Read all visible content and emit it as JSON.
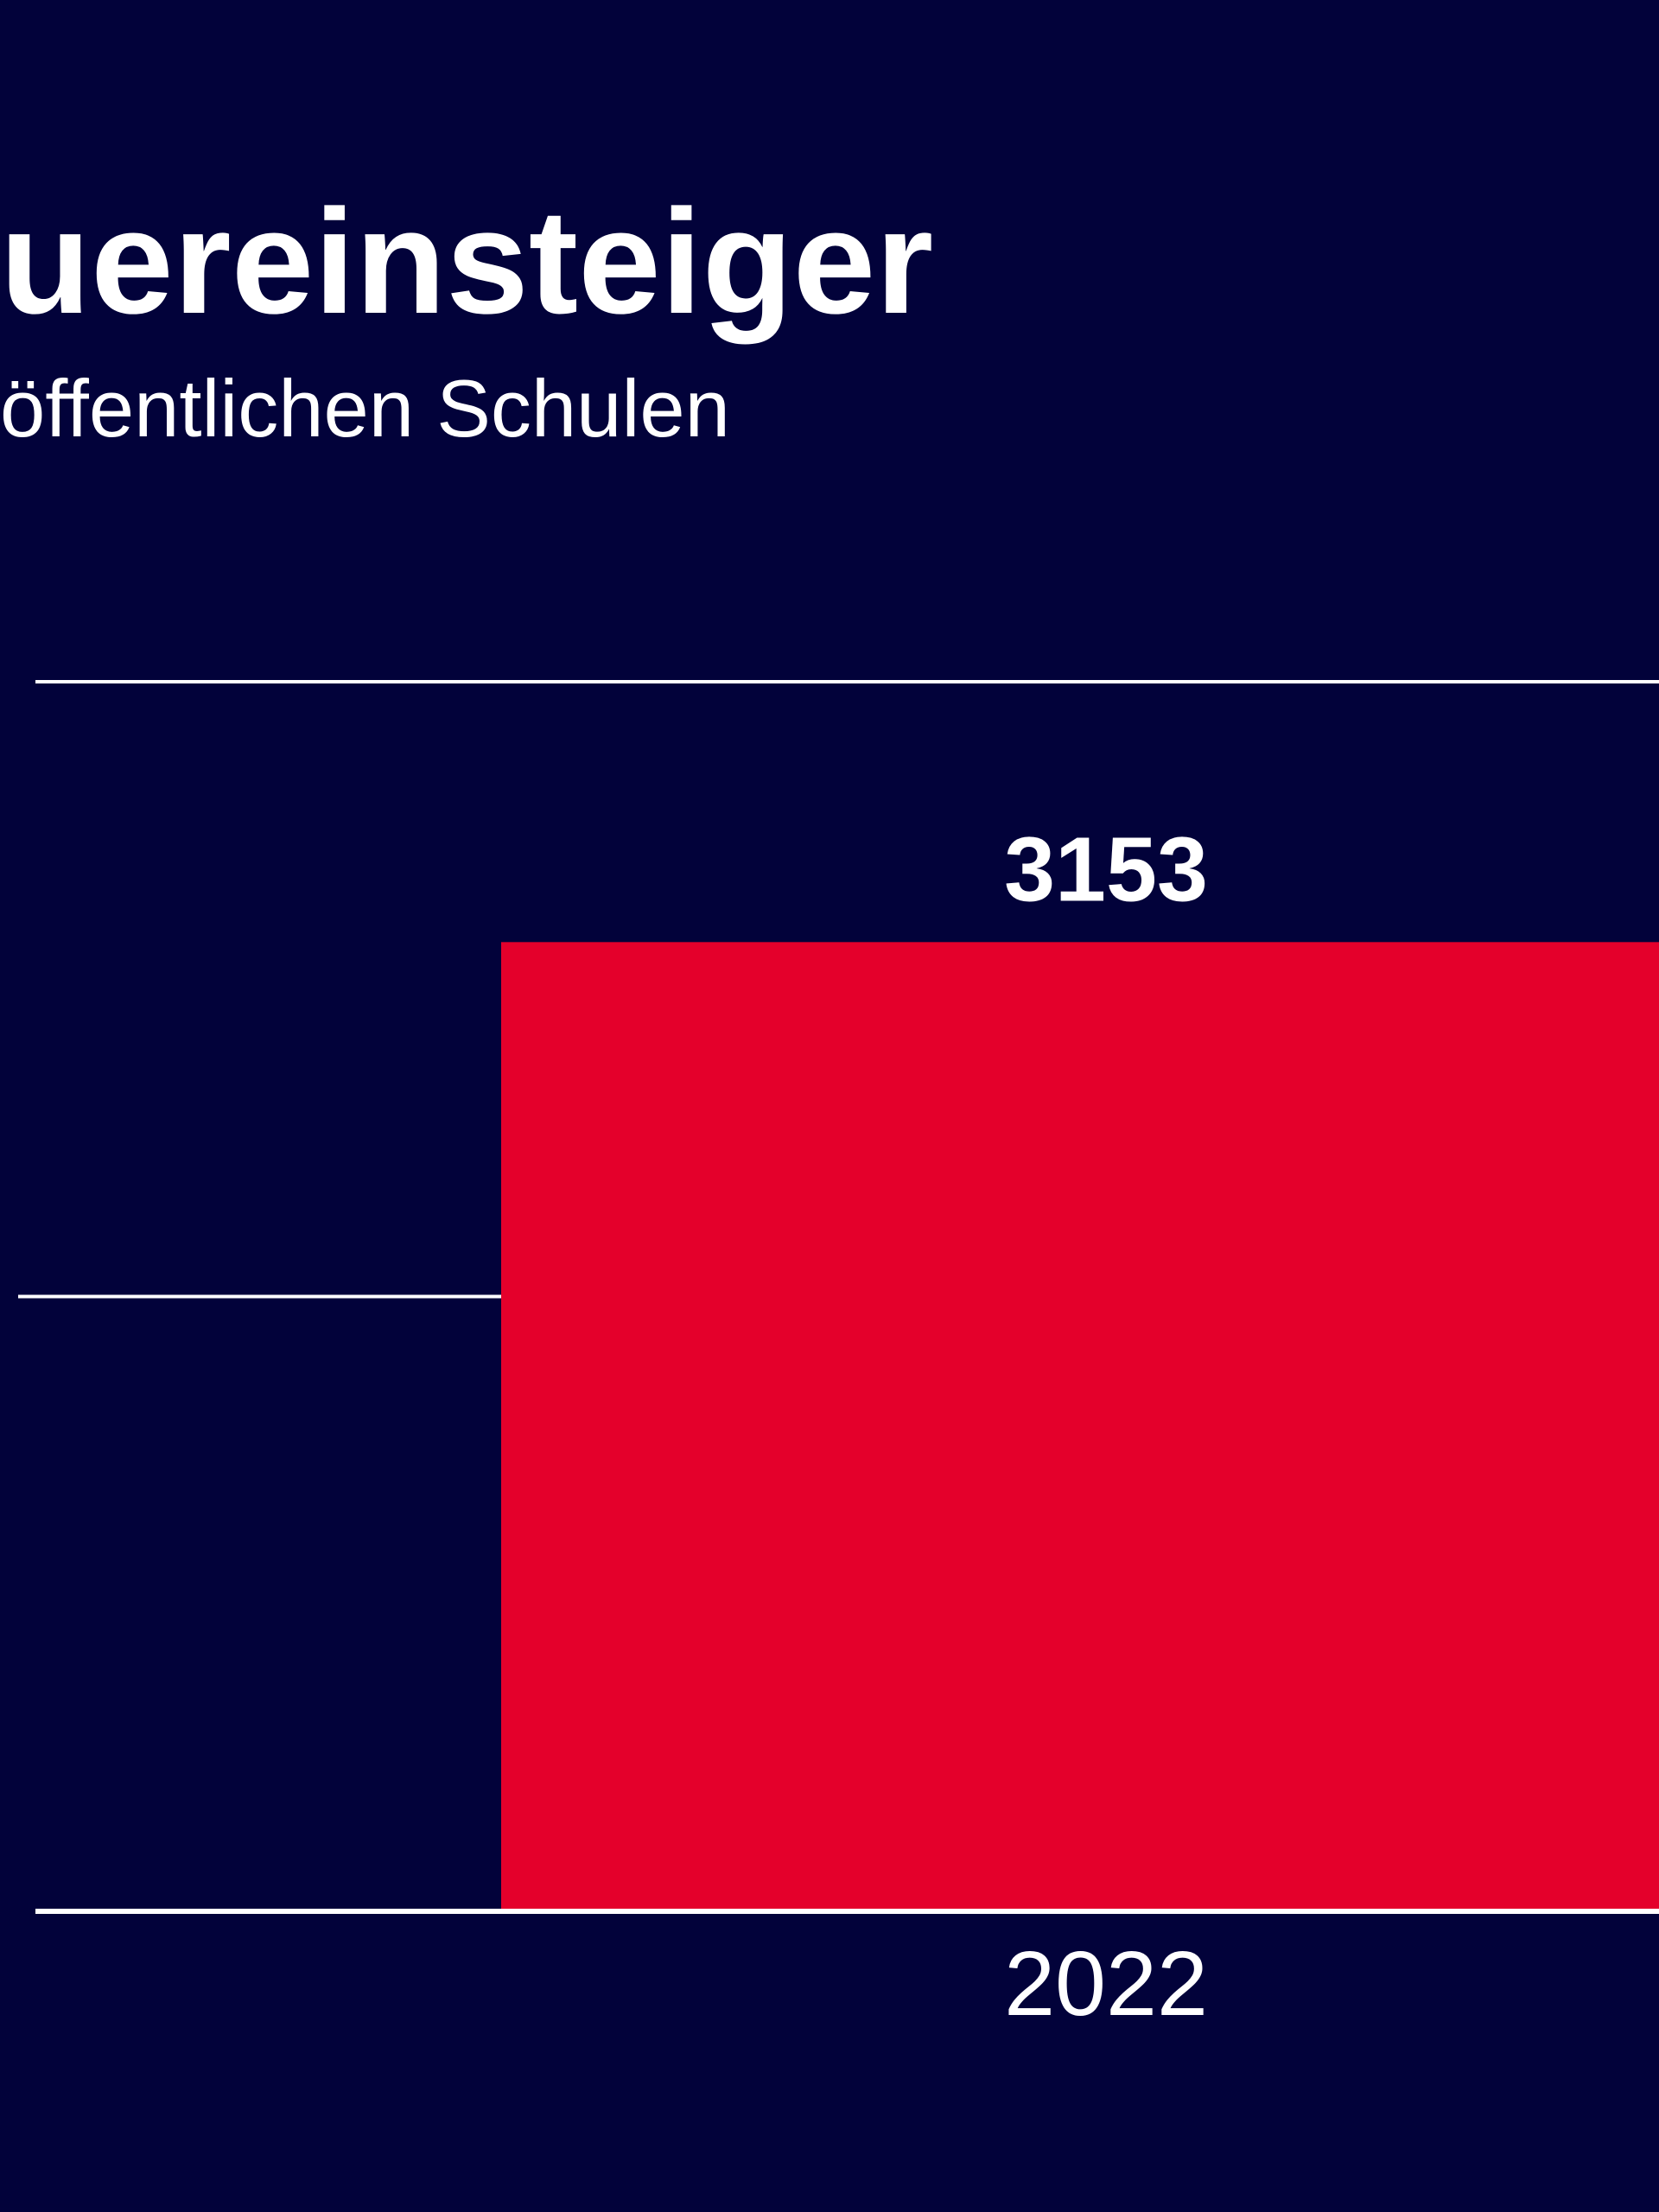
{
  "chart_data": {
    "type": "bar",
    "title": "uereinsteiger",
    "subtitle": "öffentlichen Schulen",
    "categories": [
      "2022"
    ],
    "values": [
      3153
    ],
    "color": "#e4002b",
    "ylim": [
      0,
      4000
    ],
    "yticks": [
      0,
      2000,
      4000
    ],
    "grid": true
  }
}
